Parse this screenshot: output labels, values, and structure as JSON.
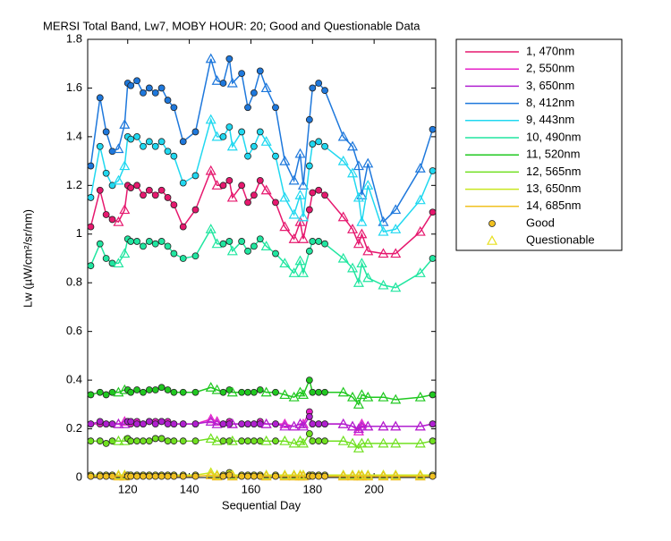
{
  "chart_data": {
    "type": "line",
    "title": "MERSI Total Band,  Lw7, MOBY HOUR: 20;  Good and Questionable Data",
    "x_label": "Sequential Day",
    "y_label": "Lw (µW/cm²/sr/nm)",
    "xlim": [
      107,
      220
    ],
    "ylim": [
      0,
      1.8
    ],
    "xticks": [
      120,
      140,
      160,
      180,
      200
    ],
    "yticks": [
      0,
      0.2,
      0.4,
      0.6,
      0.8,
      1,
      1.2,
      1.4,
      1.6,
      1.8
    ],
    "x": [
      108,
      111,
      113,
      115,
      117,
      119,
      120,
      121,
      123,
      125,
      127,
      129,
      131,
      133,
      135,
      138,
      142,
      147,
      149,
      151,
      153,
      154,
      157,
      159,
      161,
      163,
      165,
      168,
      171,
      174,
      176,
      177,
      179,
      180,
      182,
      184,
      190,
      193,
      195,
      196,
      198,
      203,
      207,
      215,
      219
    ],
    "questionable": [
      false,
      false,
      false,
      false,
      true,
      true,
      false,
      false,
      false,
      false,
      false,
      false,
      false,
      false,
      false,
      false,
      false,
      true,
      true,
      false,
      false,
      true,
      false,
      false,
      false,
      false,
      true,
      false,
      true,
      true,
      true,
      true,
      false,
      false,
      false,
      false,
      true,
      true,
      true,
      true,
      true,
      true,
      true,
      true,
      false
    ],
    "marker_legend": [
      {
        "name": "Good",
        "color": "#f0c020"
      },
      {
        "name": "Questionable",
        "color": "#e8e020"
      }
    ],
    "series": [
      {
        "name": "1, 470nm",
        "color": "#e6186e",
        "values": [
          1.03,
          1.18,
          1.08,
          1.06,
          1.05,
          1.1,
          1.2,
          1.19,
          1.2,
          1.16,
          1.18,
          1.16,
          1.18,
          1.15,
          1.12,
          1.03,
          1.1,
          1.26,
          1.2,
          1.2,
          1.22,
          1.15,
          1.2,
          1.13,
          1.16,
          1.22,
          1.18,
          1.13,
          1.03,
          0.98,
          1.05,
          0.98,
          1.1,
          1.17,
          1.18,
          1.16,
          1.07,
          1.02,
          0.96,
          1.0,
          0.93,
          0.92,
          0.92,
          1.01,
          1.09
        ]
      },
      {
        "name": "2, 550nm",
        "color": "#e620c8",
        "values": [
          0.22,
          0.22,
          0.22,
          0.22,
          0.22,
          0.23,
          0.23,
          0.22,
          0.23,
          0.22,
          0.23,
          0.23,
          0.23,
          0.23,
          0.22,
          0.22,
          0.22,
          0.24,
          0.23,
          0.22,
          0.23,
          0.22,
          0.22,
          0.22,
          0.22,
          0.23,
          0.22,
          0.22,
          0.22,
          0.21,
          0.22,
          0.22,
          0.27,
          0.22,
          0.22,
          0.22,
          0.22,
          0.21,
          0.19,
          0.22,
          0.21,
          0.21,
          0.21,
          0.21,
          0.22
        ]
      },
      {
        "name": "3, 650nm",
        "color": "#b020d0",
        "values": [
          0.22,
          0.23,
          0.22,
          0.22,
          0.22,
          0.22,
          0.23,
          0.23,
          0.22,
          0.22,
          0.23,
          0.22,
          0.23,
          0.22,
          0.22,
          0.22,
          0.22,
          0.23,
          0.22,
          0.22,
          0.22,
          0.22,
          0.22,
          0.22,
          0.22,
          0.22,
          0.22,
          0.22,
          0.21,
          0.21,
          0.22,
          0.21,
          0.25,
          0.22,
          0.22,
          0.22,
          0.22,
          0.21,
          0.2,
          0.21,
          0.21,
          0.21,
          0.21,
          0.21,
          0.22
        ]
      },
      {
        "name": "8, 412nm",
        "color": "#1e78dc",
        "values": [
          1.28,
          1.56,
          1.42,
          1.34,
          1.35,
          1.45,
          1.62,
          1.61,
          1.63,
          1.58,
          1.6,
          1.58,
          1.6,
          1.55,
          1.52,
          1.38,
          1.42,
          1.72,
          1.63,
          1.62,
          1.72,
          1.62,
          1.66,
          1.52,
          1.58,
          1.67,
          1.6,
          1.52,
          1.3,
          1.22,
          1.33,
          1.2,
          1.47,
          1.6,
          1.62,
          1.59,
          1.4,
          1.36,
          1.28,
          1.16,
          1.29,
          1.05,
          1.1,
          1.27,
          1.43
        ]
      },
      {
        "name": "9, 443nm",
        "color": "#20d8f0",
        "values": [
          1.15,
          1.36,
          1.25,
          1.2,
          1.22,
          1.28,
          1.4,
          1.39,
          1.4,
          1.36,
          1.38,
          1.36,
          1.38,
          1.34,
          1.32,
          1.21,
          1.24,
          1.47,
          1.4,
          1.4,
          1.44,
          1.36,
          1.42,
          1.32,
          1.36,
          1.42,
          1.38,
          1.32,
          1.15,
          1.08,
          1.16,
          1.07,
          1.28,
          1.37,
          1.38,
          1.36,
          1.3,
          1.25,
          1.15,
          1.05,
          1.2,
          1.01,
          1.02,
          1.14,
          1.26
        ]
      },
      {
        "name": "10, 490nm",
        "color": "#20e6a0",
        "values": [
          0.87,
          0.96,
          0.9,
          0.88,
          0.88,
          0.92,
          0.98,
          0.97,
          0.97,
          0.95,
          0.97,
          0.96,
          0.97,
          0.95,
          0.92,
          0.9,
          0.91,
          1.02,
          0.96,
          0.96,
          0.97,
          0.93,
          0.97,
          0.93,
          0.95,
          0.98,
          0.95,
          0.92,
          0.88,
          0.84,
          0.89,
          0.84,
          0.93,
          0.97,
          0.97,
          0.96,
          0.9,
          0.86,
          0.8,
          0.88,
          0.82,
          0.79,
          0.78,
          0.84,
          0.9
        ]
      },
      {
        "name": "11, 520nm",
        "color": "#20c820",
        "values": [
          0.34,
          0.35,
          0.34,
          0.35,
          0.35,
          0.36,
          0.36,
          0.35,
          0.36,
          0.35,
          0.36,
          0.36,
          0.37,
          0.36,
          0.35,
          0.35,
          0.35,
          0.37,
          0.36,
          0.35,
          0.36,
          0.35,
          0.35,
          0.35,
          0.35,
          0.36,
          0.35,
          0.35,
          0.34,
          0.33,
          0.35,
          0.34,
          0.4,
          0.35,
          0.35,
          0.35,
          0.35,
          0.33,
          0.3,
          0.34,
          0.33,
          0.33,
          0.32,
          0.33,
          0.34
        ]
      },
      {
        "name": "12, 565nm",
        "color": "#70e020",
        "values": [
          0.15,
          0.15,
          0.14,
          0.15,
          0.15,
          0.15,
          0.16,
          0.15,
          0.15,
          0.15,
          0.15,
          0.16,
          0.16,
          0.15,
          0.15,
          0.15,
          0.15,
          0.16,
          0.15,
          0.15,
          0.15,
          0.15,
          0.15,
          0.15,
          0.15,
          0.15,
          0.15,
          0.15,
          0.15,
          0.14,
          0.15,
          0.14,
          0.18,
          0.15,
          0.15,
          0.15,
          0.15,
          0.14,
          0.12,
          0.14,
          0.14,
          0.14,
          0.14,
          0.14,
          0.15
        ]
      },
      {
        "name": "13, 650nm",
        "color": "#c8e620",
        "values": [
          0.01,
          0.01,
          0.01,
          0.01,
          0.01,
          0.01,
          0.01,
          0.01,
          0.01,
          0.01,
          0.01,
          0.01,
          0.01,
          0.01,
          0.01,
          0.01,
          0.01,
          0.02,
          0.01,
          0.01,
          0.02,
          0.01,
          0.01,
          0.01,
          0.01,
          0.01,
          0.01,
          0.01,
          0.01,
          0.01,
          0.01,
          0.01,
          0.01,
          0.01,
          0.01,
          0.01,
          0.01,
          0.01,
          0.01,
          0.01,
          0.01,
          0.01,
          0.01,
          0.01,
          0.01
        ]
      },
      {
        "name": "14, 685nm",
        "color": "#f0c020",
        "values": [
          0.005,
          0.005,
          0.005,
          0.005,
          0.005,
          0.005,
          0.005,
          0.005,
          0.005,
          0.005,
          0.005,
          0.005,
          0.005,
          0.005,
          0.005,
          0.005,
          0.005,
          0.01,
          0.005,
          0.005,
          0.01,
          0.005,
          0.005,
          0.005,
          0.005,
          0.005,
          0.005,
          0.005,
          0.005,
          0.005,
          0.005,
          0.005,
          0.005,
          0.005,
          0.005,
          0.005,
          0.005,
          0.005,
          0.005,
          0.005,
          0.005,
          0.005,
          0.005,
          0.005,
          0.005
        ]
      }
    ]
  }
}
